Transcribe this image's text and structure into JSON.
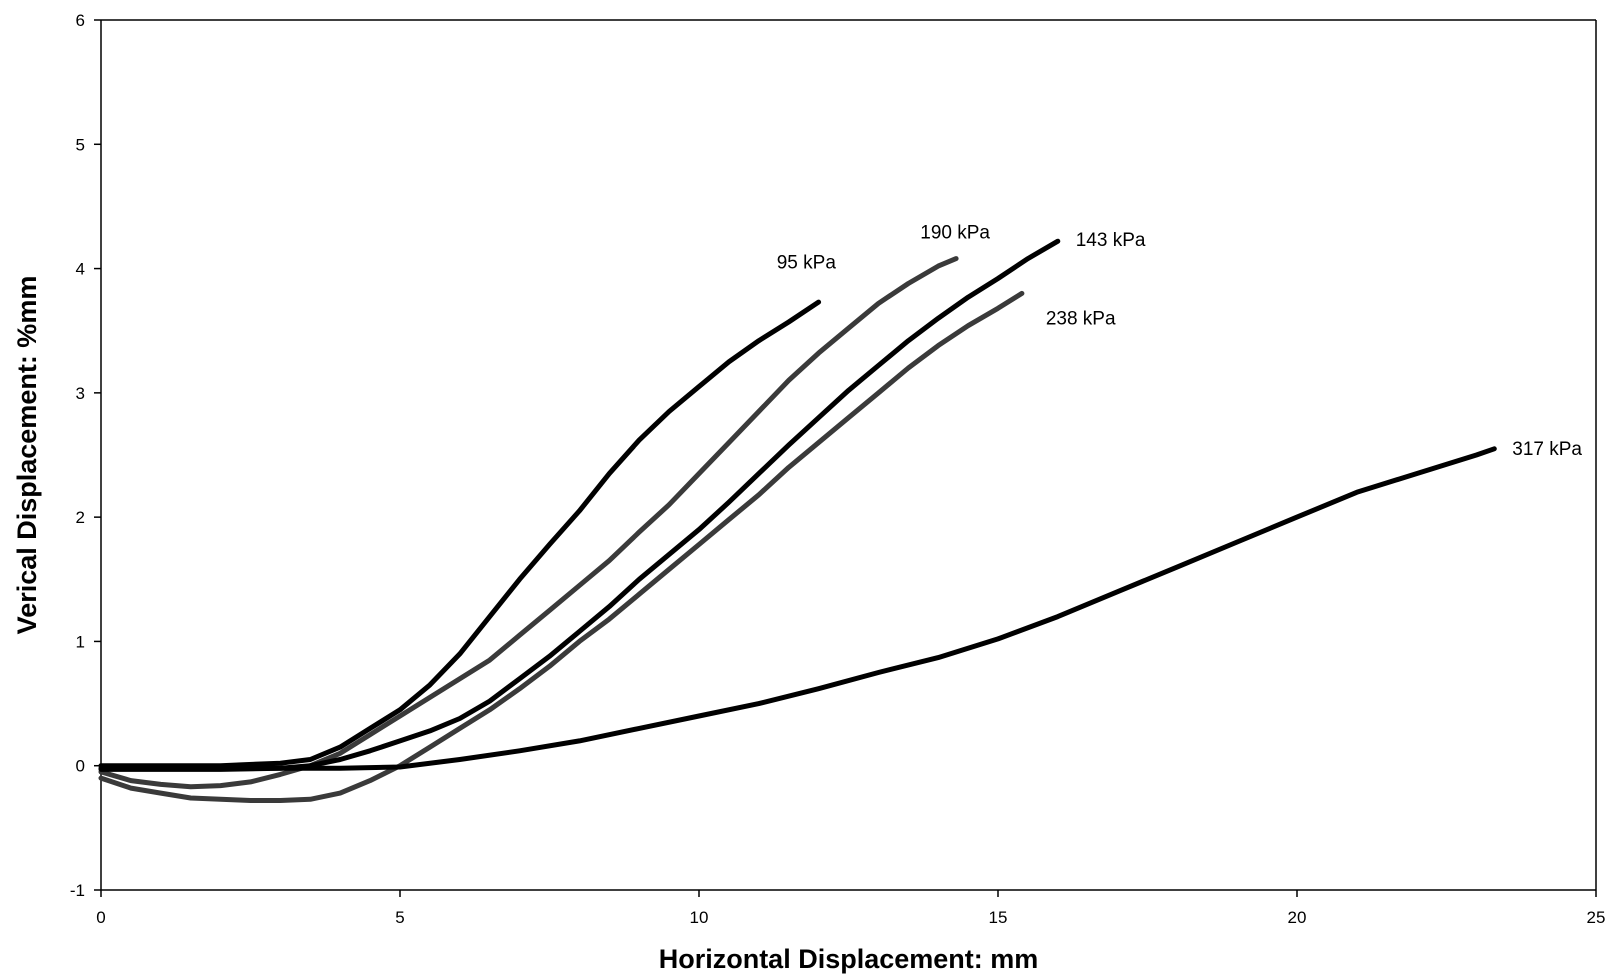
{
  "chart_data": {
    "type": "line",
    "title": "",
    "xlabel": "Horizontal  Displacement: mm",
    "ylabel": "Verical Displacement: %mm",
    "xlim": [
      0,
      25
    ],
    "ylim": [
      -1,
      6
    ],
    "xticks": [
      0,
      5,
      10,
      15,
      20,
      25
    ],
    "yticks": [
      -1,
      0,
      1,
      2,
      3,
      4,
      5,
      6
    ],
    "xtick_labels": [
      "0",
      "5",
      "10",
      "15",
      "20",
      "25"
    ],
    "ytick_labels": [
      "-1",
      "0",
      "1",
      "2",
      "3",
      "4",
      "5",
      "6"
    ],
    "grid": false,
    "legend": "none",
    "series": [
      {
        "name": "95 kPa",
        "color": "#000000",
        "label": {
          "x": 11.3,
          "y": 4.0
        },
        "points": [
          [
            0,
            0
          ],
          [
            1,
            0
          ],
          [
            2,
            0
          ],
          [
            3,
            0.02
          ],
          [
            3.5,
            0.05
          ],
          [
            4,
            0.15
          ],
          [
            4.5,
            0.3
          ],
          [
            5,
            0.45
          ],
          [
            5.5,
            0.65
          ],
          [
            6,
            0.9
          ],
          [
            6.5,
            1.2
          ],
          [
            7,
            1.5
          ],
          [
            7.5,
            1.78
          ],
          [
            8,
            2.05
          ],
          [
            8.5,
            2.35
          ],
          [
            9,
            2.62
          ],
          [
            9.5,
            2.85
          ],
          [
            10,
            3.05
          ],
          [
            10.5,
            3.25
          ],
          [
            11,
            3.42
          ],
          [
            11.5,
            3.57
          ],
          [
            12,
            3.73
          ]
        ]
      },
      {
        "name": "190 kPa",
        "color": "#3a3a3a",
        "label": {
          "x": 13.7,
          "y": 4.24
        },
        "points": [
          [
            0,
            -0.05
          ],
          [
            0.5,
            -0.12
          ],
          [
            1,
            -0.15
          ],
          [
            1.5,
            -0.17
          ],
          [
            2,
            -0.16
          ],
          [
            2.5,
            -0.13
          ],
          [
            3,
            -0.07
          ],
          [
            3.5,
            0
          ],
          [
            4,
            0.1
          ],
          [
            4.5,
            0.25
          ],
          [
            5,
            0.4
          ],
          [
            5.5,
            0.55
          ],
          [
            6,
            0.7
          ],
          [
            6.5,
            0.85
          ],
          [
            7,
            1.05
          ],
          [
            7.5,
            1.25
          ],
          [
            8,
            1.45
          ],
          [
            8.5,
            1.65
          ],
          [
            9,
            1.88
          ],
          [
            9.5,
            2.1
          ],
          [
            10,
            2.35
          ],
          [
            10.5,
            2.6
          ],
          [
            11,
            2.85
          ],
          [
            11.5,
            3.1
          ],
          [
            12,
            3.32
          ],
          [
            12.5,
            3.52
          ],
          [
            13,
            3.72
          ],
          [
            13.5,
            3.88
          ],
          [
            14,
            4.02
          ],
          [
            14.3,
            4.08
          ]
        ]
      },
      {
        "name": "143 kPa",
        "color": "#000000",
        "label": {
          "x": 16.3,
          "y": 4.18
        },
        "points": [
          [
            0,
            -0.03
          ],
          [
            1,
            -0.03
          ],
          [
            2,
            -0.03
          ],
          [
            3,
            -0.02
          ],
          [
            3.5,
            0
          ],
          [
            4,
            0.05
          ],
          [
            4.5,
            0.12
          ],
          [
            5,
            0.2
          ],
          [
            5.5,
            0.28
          ],
          [
            6,
            0.38
          ],
          [
            6.5,
            0.52
          ],
          [
            7,
            0.7
          ],
          [
            7.5,
            0.88
          ],
          [
            8,
            1.08
          ],
          [
            8.5,
            1.28
          ],
          [
            9,
            1.5
          ],
          [
            9.5,
            1.7
          ],
          [
            10,
            1.9
          ],
          [
            10.5,
            2.12
          ],
          [
            11,
            2.35
          ],
          [
            11.5,
            2.58
          ],
          [
            12,
            2.8
          ],
          [
            12.5,
            3.02
          ],
          [
            13,
            3.22
          ],
          [
            13.5,
            3.42
          ],
          [
            14,
            3.6
          ],
          [
            14.5,
            3.77
          ],
          [
            15,
            3.92
          ],
          [
            15.5,
            4.08
          ],
          [
            16,
            4.22
          ]
        ]
      },
      {
        "name": "238 kPa",
        "color": "#3a3a3a",
        "label": {
          "x": 15.8,
          "y": 3.55
        },
        "points": [
          [
            0,
            -0.1
          ],
          [
            0.5,
            -0.18
          ],
          [
            1,
            -0.22
          ],
          [
            1.5,
            -0.26
          ],
          [
            2,
            -0.27
          ],
          [
            2.5,
            -0.28
          ],
          [
            3,
            -0.28
          ],
          [
            3.5,
            -0.27
          ],
          [
            4,
            -0.22
          ],
          [
            4.5,
            -0.12
          ],
          [
            5,
            0
          ],
          [
            5.5,
            0.15
          ],
          [
            6,
            0.3
          ],
          [
            6.5,
            0.45
          ],
          [
            7,
            0.62
          ],
          [
            7.5,
            0.8
          ],
          [
            8,
            1
          ],
          [
            8.5,
            1.18
          ],
          [
            9,
            1.38
          ],
          [
            9.5,
            1.58
          ],
          [
            10,
            1.78
          ],
          [
            10.5,
            1.98
          ],
          [
            11,
            2.18
          ],
          [
            11.5,
            2.4
          ],
          [
            12,
            2.6
          ],
          [
            12.5,
            2.8
          ],
          [
            13,
            3
          ],
          [
            13.5,
            3.2
          ],
          [
            14,
            3.38
          ],
          [
            14.5,
            3.54
          ],
          [
            15,
            3.68
          ],
          [
            15.4,
            3.8
          ]
        ]
      },
      {
        "name": "317 kPa",
        "color": "#000000",
        "label": {
          "x": 23.6,
          "y": 2.5
        },
        "points": [
          [
            0,
            -0.02
          ],
          [
            2,
            -0.02
          ],
          [
            4,
            -0.02
          ],
          [
            5,
            -0.01
          ],
          [
            6,
            0.05
          ],
          [
            7,
            0.12
          ],
          [
            8,
            0.2
          ],
          [
            9,
            0.3
          ],
          [
            10,
            0.4
          ],
          [
            11,
            0.5
          ],
          [
            12,
            0.62
          ],
          [
            13,
            0.75
          ],
          [
            14,
            0.87
          ],
          [
            15,
            1.02
          ],
          [
            16,
            1.2
          ],
          [
            17,
            1.4
          ],
          [
            18,
            1.6
          ],
          [
            19,
            1.8
          ],
          [
            20,
            2.0
          ],
          [
            21,
            2.2
          ],
          [
            22,
            2.35
          ],
          [
            23,
            2.5
          ],
          [
            23.3,
            2.55
          ]
        ]
      }
    ]
  }
}
